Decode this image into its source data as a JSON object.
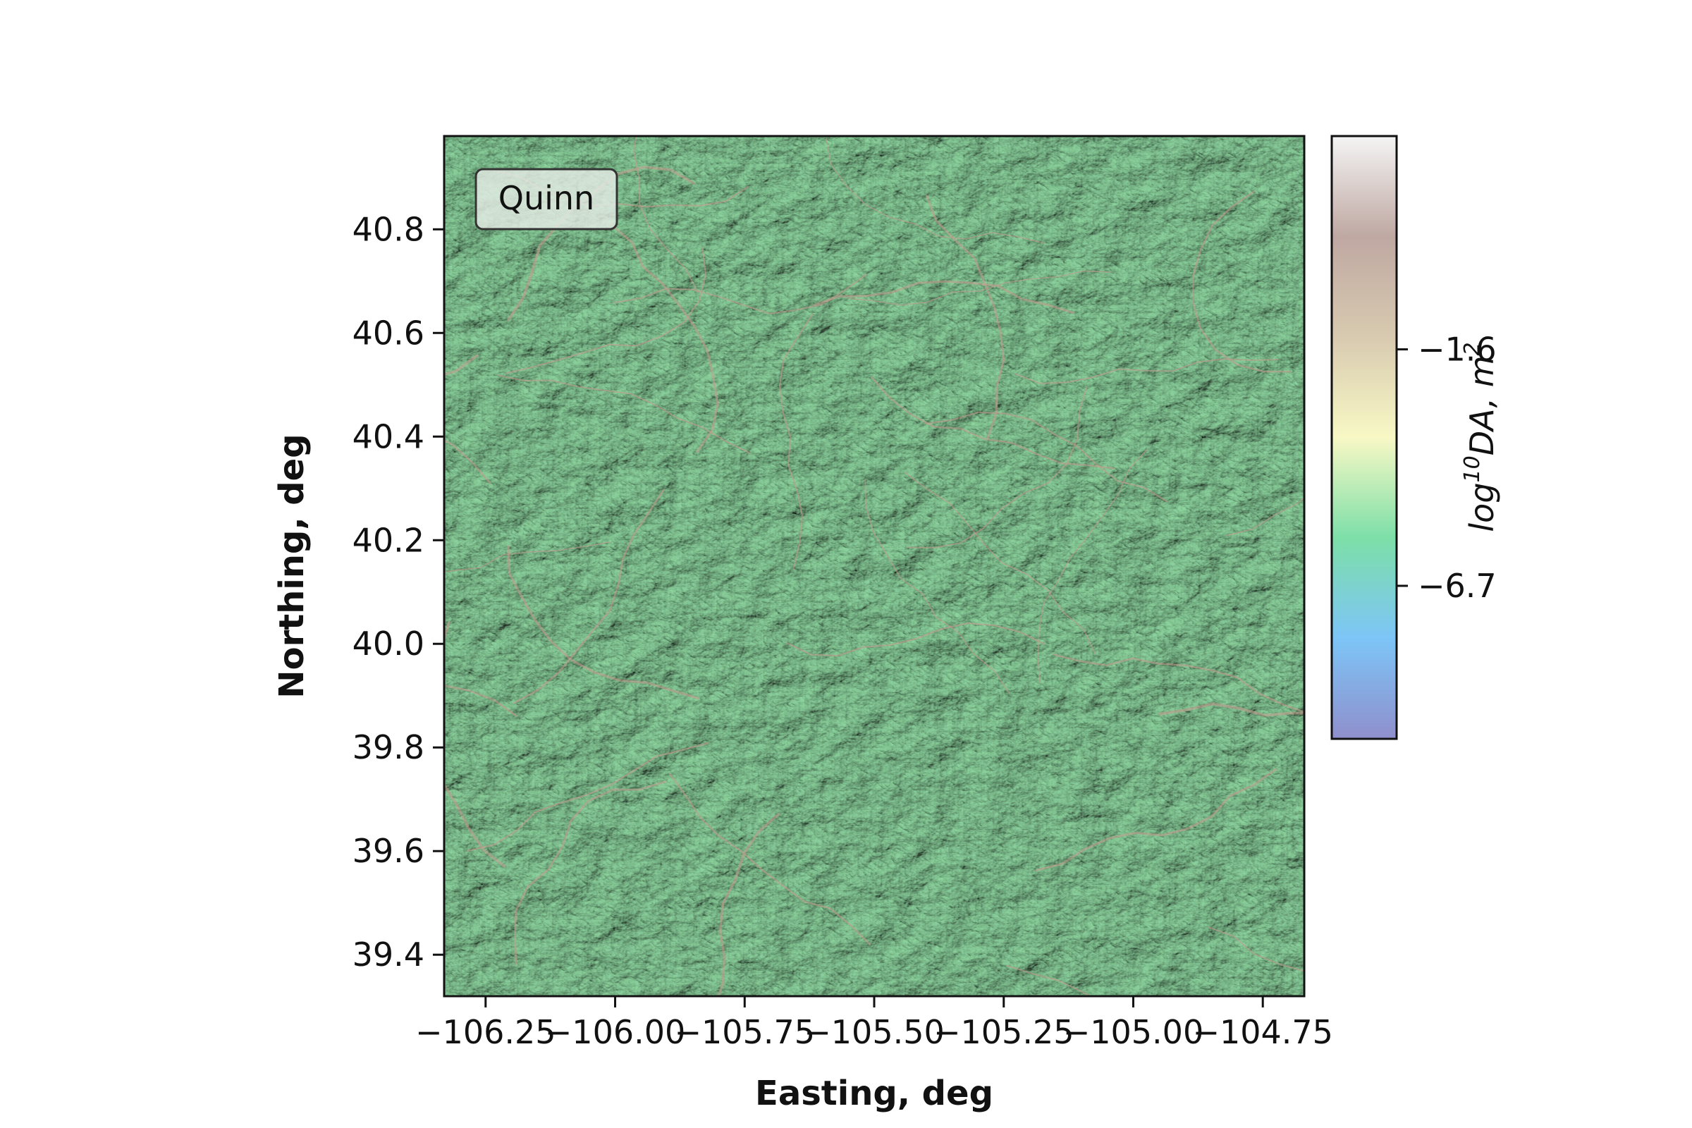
{
  "chart_data": {
    "type": "heatmap",
    "title": "",
    "xlabel": "Easting, deg",
    "ylabel": "Northing, deg",
    "xlim": [
      -106.33,
      -104.67
    ],
    "ylim": [
      39.32,
      40.98
    ],
    "x_ticks": [
      -106.25,
      -106.0,
      -105.75,
      -105.5,
      -105.25,
      -105.0,
      -104.75
    ],
    "x_tick_labels": [
      "−106.25",
      "−106.00",
      "−105.75",
      "−105.50",
      "−105.25",
      "−105.00",
      "−104.75"
    ],
    "y_ticks": [
      39.4,
      39.6,
      39.8,
      40.0,
      40.2,
      40.4,
      40.6,
      40.8
    ],
    "y_tick_labels": [
      "39.4",
      "39.6",
      "39.8",
      "40.0",
      "40.2",
      "40.4",
      "40.6",
      "40.8"
    ],
    "legend_label": "Quinn",
    "legend_placement": "top-left",
    "grid": false,
    "colorbar": {
      "label_base": "log",
      "label_sup1": "10",
      "label_mid": "DA, m",
      "label_sup2": "2",
      "range": [
        -10.0,
        3.0
      ],
      "ticks": [
        -1.6,
        -6.7
      ],
      "tick_labels": [
        "−1.6",
        "−6.7"
      ],
      "colors": [
        "#8f8fcc",
        "#7dc5f7",
        "#7ddfa8",
        "#f8f8c5",
        "#d8cab0",
        "#bfa8a2",
        "#f4f4f4"
      ]
    },
    "map_colors": {
      "base": "#7ec992",
      "shadow": "#3f8a55",
      "highlight": "#d6f5b2",
      "channel": "#c79a8e"
    }
  }
}
